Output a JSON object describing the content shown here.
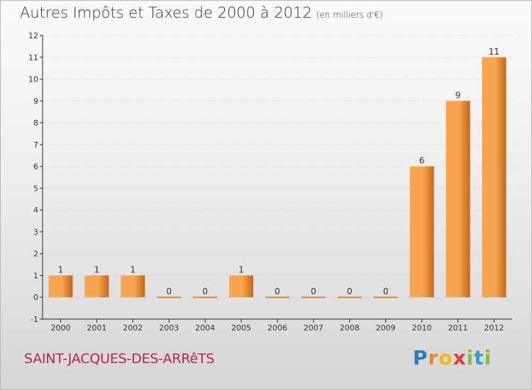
{
  "header": {
    "title": "Autres Impôts et Taxes de 2000 à 2012",
    "unit": "(en milliers d'€)"
  },
  "footer": {
    "commune": "SAINT-JACQUES-DES-ARRêTS",
    "logo": [
      "P",
      "r",
      "o",
      "x",
      "i",
      "t",
      "i"
    ]
  },
  "colors": {
    "bar_light": "#f7a54e",
    "bar_dark": "#c4661a",
    "axis": "#222222",
    "grid": "#c8c8c8",
    "commune": "#b8254f"
  },
  "chart_data": {
    "type": "bar",
    "title": "Autres Impôts et Taxes de 2000 à 2012",
    "subtitle": "(en milliers d'€)",
    "categories": [
      "2000",
      "2001",
      "2002",
      "2003",
      "2004",
      "2005",
      "2006",
      "2007",
      "2008",
      "2009",
      "2010",
      "2011",
      "2012"
    ],
    "values": [
      1,
      1,
      1,
      0,
      0,
      1,
      0,
      0,
      0,
      0,
      6,
      9,
      11
    ],
    "data_labels": [
      "1",
      "1",
      "1",
      "0",
      "0",
      "1",
      "0",
      "0",
      "0",
      "0",
      "6",
      "9",
      "11"
    ],
    "yticks": [
      -1,
      0,
      1,
      2,
      3,
      4,
      5,
      6,
      7,
      8,
      9,
      10,
      11,
      12
    ],
    "ylim": [
      -1,
      12
    ],
    "grid": "horizontal",
    "legend": "none"
  }
}
